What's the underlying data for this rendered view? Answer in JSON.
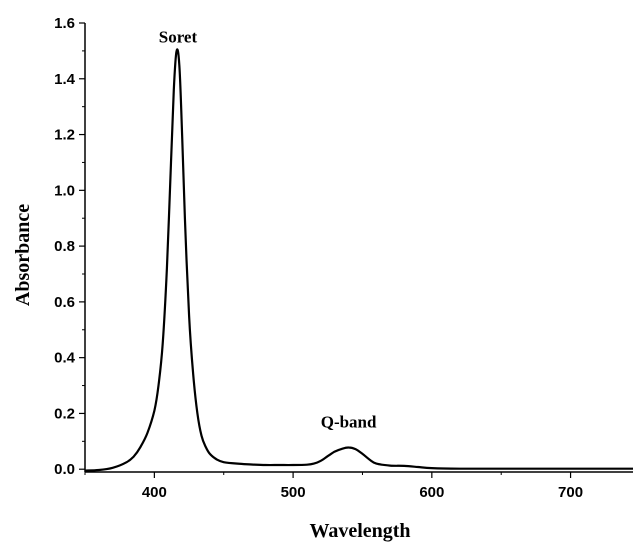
{
  "chart_data": {
    "type": "line",
    "xlabel": "Wavelength",
    "ylabel": "Absorbance",
    "xlim": [
      350,
      745
    ],
    "ylim": [
      -0.01,
      1.6
    ],
    "xticks": [
      400,
      500,
      600,
      700
    ],
    "xtick_labels": [
      "400",
      "500",
      "600",
      "700"
    ],
    "yticks": [
      0.0,
      0.2,
      0.4,
      0.6,
      0.8,
      1.0,
      1.2,
      1.4,
      1.6
    ],
    "ytick_labels": [
      "0.0",
      "0.2",
      "0.4",
      "0.6",
      "0.8",
      "1.0",
      "1.2",
      "1.4",
      "1.6"
    ],
    "grid": false,
    "line_color": "#000000",
    "annotations": [
      {
        "text": "Soret",
        "x": 417,
        "y": 1.53
      },
      {
        "text": "Q-band",
        "x": 540,
        "y": 0.15
      }
    ],
    "series": [
      {
        "x": [
          350,
          360,
          370,
          380,
          385,
          390,
          395,
          400,
          403,
          406,
          409,
          412,
          414,
          416,
          418,
          420,
          422,
          425,
          428,
          431,
          434,
          437,
          440,
          445,
          450,
          460,
          470,
          480,
          490,
          500,
          510,
          515,
          520,
          525,
          530,
          535,
          540,
          545,
          550,
          555,
          560,
          570,
          580,
          590,
          600,
          620,
          650,
          700,
          745
        ],
        "y": [
          -0.005,
          -0.003,
          0.005,
          0.025,
          0.045,
          0.08,
          0.13,
          0.21,
          0.3,
          0.45,
          0.72,
          1.1,
          1.36,
          1.5,
          1.45,
          1.2,
          0.9,
          0.55,
          0.34,
          0.2,
          0.12,
          0.08,
          0.055,
          0.035,
          0.025,
          0.02,
          0.017,
          0.015,
          0.015,
          0.015,
          0.016,
          0.02,
          0.03,
          0.047,
          0.063,
          0.073,
          0.078,
          0.072,
          0.055,
          0.035,
          0.02,
          0.013,
          0.012,
          0.008,
          0.004,
          0.002,
          0.002,
          0.002,
          0.002
        ]
      }
    ]
  }
}
